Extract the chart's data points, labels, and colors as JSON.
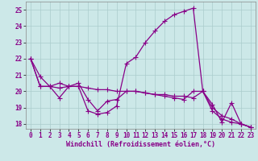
{
  "xlabel": "Windchill (Refroidissement éolien,°C)",
  "xlim": [
    -0.5,
    23.5
  ],
  "ylim": [
    17.7,
    25.5
  ],
  "yticks": [
    18,
    19,
    20,
    21,
    22,
    23,
    24,
    25
  ],
  "xticks": [
    0,
    1,
    2,
    3,
    4,
    5,
    6,
    7,
    8,
    9,
    10,
    11,
    12,
    13,
    14,
    15,
    16,
    17,
    18,
    19,
    20,
    21,
    22,
    23
  ],
  "bg_color": "#cce8e8",
  "grid_color": "#aacccc",
  "line_color": "#880088",
  "line1_y": [
    22.0,
    20.9,
    20.3,
    20.5,
    20.3,
    20.3,
    18.8,
    18.6,
    18.7,
    19.1,
    21.7,
    22.1,
    23.0,
    23.7,
    24.3,
    24.7,
    24.9,
    25.1,
    20.0,
    19.2,
    18.1,
    19.3,
    18.0,
    17.8
  ],
  "line2_y": [
    22.0,
    20.3,
    20.3,
    20.2,
    20.3,
    20.3,
    20.2,
    20.1,
    20.1,
    20.0,
    20.0,
    20.0,
    19.9,
    19.8,
    19.8,
    19.7,
    19.7,
    19.6,
    20.0,
    19.0,
    18.5,
    18.3,
    18.0,
    17.8
  ],
  "line3_y": [
    22.0,
    20.3,
    20.3,
    19.6,
    20.3,
    20.5,
    19.5,
    18.8,
    19.4,
    19.5,
    20.0,
    20.0,
    19.9,
    19.8,
    19.7,
    19.6,
    19.5,
    20.0,
    20.0,
    18.8,
    18.3,
    18.1,
    18.0,
    17.8
  ],
  "tick_fontsize": 5.5,
  "label_fontsize": 6,
  "lw": 0.9,
  "ms": 2.5
}
